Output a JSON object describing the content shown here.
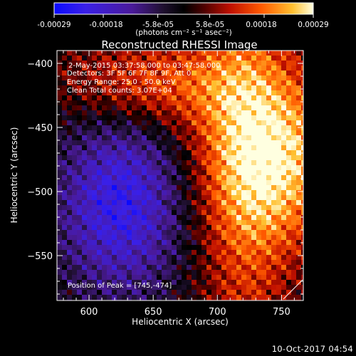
{
  "colorbar": {
    "ticks": [
      "-0.00029",
      "-0.00018",
      "-5.8e-05",
      "5.8e-05",
      "0.00018",
      "0.00029"
    ],
    "tick_values": [
      -0.00029,
      -0.00018,
      -5.8e-05,
      5.8e-05,
      0.00018,
      0.00029
    ],
    "range": [
      -0.00029,
      0.00029
    ],
    "units": "(photons cm⁻² s⁻¹ asec⁻²)"
  },
  "annotations": {
    "time_range": "2-May-2015 03:37:58.000 to 03:47:58.000",
    "detectors": "Detectors: 3F 5F 6F 7F 8F 9F, Att 0",
    "energy": "Energy Range: 25.0 - 50.0 keV",
    "clean": "Clean    Total counts: 3.07E+04",
    "peak": "Position of Peak = [745,-474]"
  },
  "timestamp": "10-Oct-2017 04:54",
  "chart_data": {
    "type": "heatmap",
    "title": "Reconstructed RHESSI Image",
    "xlabel": "Heliocentric X (arcsec)",
    "ylabel": "Heliocentric Y (arcsec)",
    "xlim": [
      575,
      767
    ],
    "ylim": [
      -585,
      -390
    ],
    "xticks": [
      600,
      650,
      700,
      750
    ],
    "yticks": [
      -550,
      -500,
      -450,
      -400
    ],
    "peak_position": [
      745,
      -474
    ],
    "colors": {
      "negative": "#0000ff",
      "zero": "#000000",
      "positive": "#ffff80",
      "background": "#000000",
      "foreground": "#ffffff"
    }
  }
}
